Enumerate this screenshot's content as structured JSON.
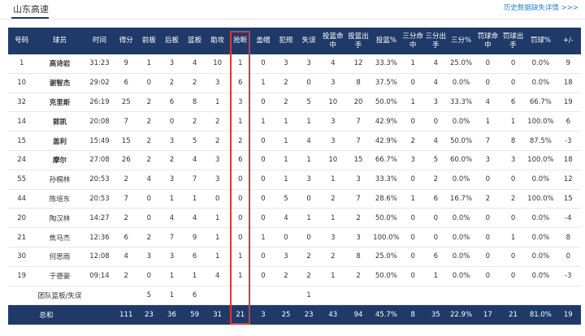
{
  "header": {
    "team_name": "山东高速",
    "history_link": "历史数据缺失详情 >>>"
  },
  "colors": {
    "header_bg": "#1f3a68",
    "link": "#2a7ed6",
    "highlight": "#d83a3a"
  },
  "table": {
    "columns": [
      "号码",
      "球员",
      "时间",
      "得分",
      "前板",
      "后板",
      "篮板",
      "助攻",
      "抢断",
      "盖帽",
      "犯规",
      "失误",
      "投篮命中",
      "投篮出手",
      "投篮%",
      "三分命中",
      "三分出手",
      "三分%",
      "罚球命中",
      "罚球出手",
      "罚球%",
      "+/-"
    ],
    "rows": [
      [
        "1",
        "高诗岩",
        "31:23",
        "9",
        "1",
        "3",
        "4",
        "10",
        "1",
        "0",
        "3",
        "3",
        "4",
        "12",
        "33.3%",
        "1",
        "4",
        "25.0%",
        "0",
        "0",
        "0.0%",
        "9"
      ],
      [
        "10",
        "谢智杰",
        "29:02",
        "6",
        "0",
        "2",
        "2",
        "3",
        "6",
        "1",
        "2",
        "0",
        "3",
        "8",
        "37.5%",
        "0",
        "4",
        "0.0%",
        "0",
        "0",
        "0.0%",
        "18"
      ],
      [
        "32",
        "克里斯",
        "26:19",
        "25",
        "2",
        "6",
        "8",
        "1",
        "3",
        "0",
        "2",
        "5",
        "10",
        "20",
        "50.0%",
        "1",
        "3",
        "33.3%",
        "4",
        "6",
        "66.7%",
        "19"
      ],
      [
        "14",
        "郭凯",
        "20:08",
        "7",
        "2",
        "0",
        "2",
        "2",
        "1",
        "1",
        "1",
        "1",
        "3",
        "7",
        "42.9%",
        "0",
        "0",
        "0.0%",
        "1",
        "1",
        "100.0%",
        "6"
      ],
      [
        "15",
        "盖利",
        "15:49",
        "15",
        "2",
        "3",
        "5",
        "2",
        "2",
        "0",
        "1",
        "4",
        "3",
        "7",
        "42.9%",
        "2",
        "4",
        "50.0%",
        "7",
        "8",
        "87.5%",
        "-3"
      ],
      [
        "24",
        "摩尔",
        "27:08",
        "26",
        "2",
        "2",
        "4",
        "3",
        "6",
        "0",
        "1",
        "1",
        "10",
        "15",
        "66.7%",
        "3",
        "5",
        "60.0%",
        "3",
        "3",
        "100.0%",
        "18"
      ],
      [
        "55",
        "孙桐林",
        "20:53",
        "2",
        "4",
        "3",
        "7",
        "3",
        "0",
        "0",
        "1",
        "3",
        "1",
        "3",
        "33.3%",
        "0",
        "2",
        "0.0%",
        "0",
        "0",
        "0.0%",
        "12"
      ],
      [
        "44",
        "陈培东",
        "20:53",
        "7",
        "0",
        "1",
        "1",
        "0",
        "0",
        "0",
        "5",
        "0",
        "2",
        "7",
        "28.6%",
        "1",
        "6",
        "16.7%",
        "2",
        "2",
        "100.0%",
        "15"
      ],
      [
        "20",
        "陶汉林",
        "14:27",
        "2",
        "0",
        "4",
        "4",
        "1",
        "0",
        "0",
        "4",
        "1",
        "1",
        "2",
        "50.0%",
        "0",
        "0",
        "0.0%",
        "0",
        "0",
        "0.0%",
        "-4"
      ],
      [
        "21",
        "焦马杰",
        "12:36",
        "6",
        "2",
        "7",
        "9",
        "1",
        "0",
        "1",
        "0",
        "0",
        "3",
        "3",
        "100.0%",
        "0",
        "0",
        "0.0%",
        "0",
        "1",
        "0.0%",
        "8"
      ],
      [
        "30",
        "何思雨",
        "12:08",
        "4",
        "3",
        "3",
        "6",
        "1",
        "1",
        "0",
        "3",
        "2",
        "2",
        "8",
        "25.0%",
        "0",
        "6",
        "0.0%",
        "0",
        "0",
        "0.0%",
        "0"
      ],
      [
        "19",
        "于德豪",
        "09:14",
        "2",
        "0",
        "1",
        "1",
        "4",
        "1",
        "0",
        "2",
        "2",
        "1",
        "2",
        "50.0%",
        "0",
        "1",
        "0.0%",
        "0",
        "0",
        "0.0%",
        "-3"
      ],
      [
        "",
        "团队篮板/失误",
        "",
        "",
        "5",
        "1",
        "6",
        "",
        "",
        "",
        "",
        "1",
        "",
        "",
        "",
        "",
        "",
        "",
        "",
        "",
        "",
        ""
      ]
    ],
    "total": [
      "总和",
      "",
      "111",
      "23",
      "36",
      "59",
      "31",
      "21",
      "3",
      "25",
      "23",
      "43",
      "94",
      "45.7%",
      "8",
      "35",
      "22.9%",
      "17",
      "21",
      "81.0%",
      "19"
    ],
    "bold_player_rows": [
      0,
      1,
      2,
      3,
      4,
      5
    ]
  }
}
